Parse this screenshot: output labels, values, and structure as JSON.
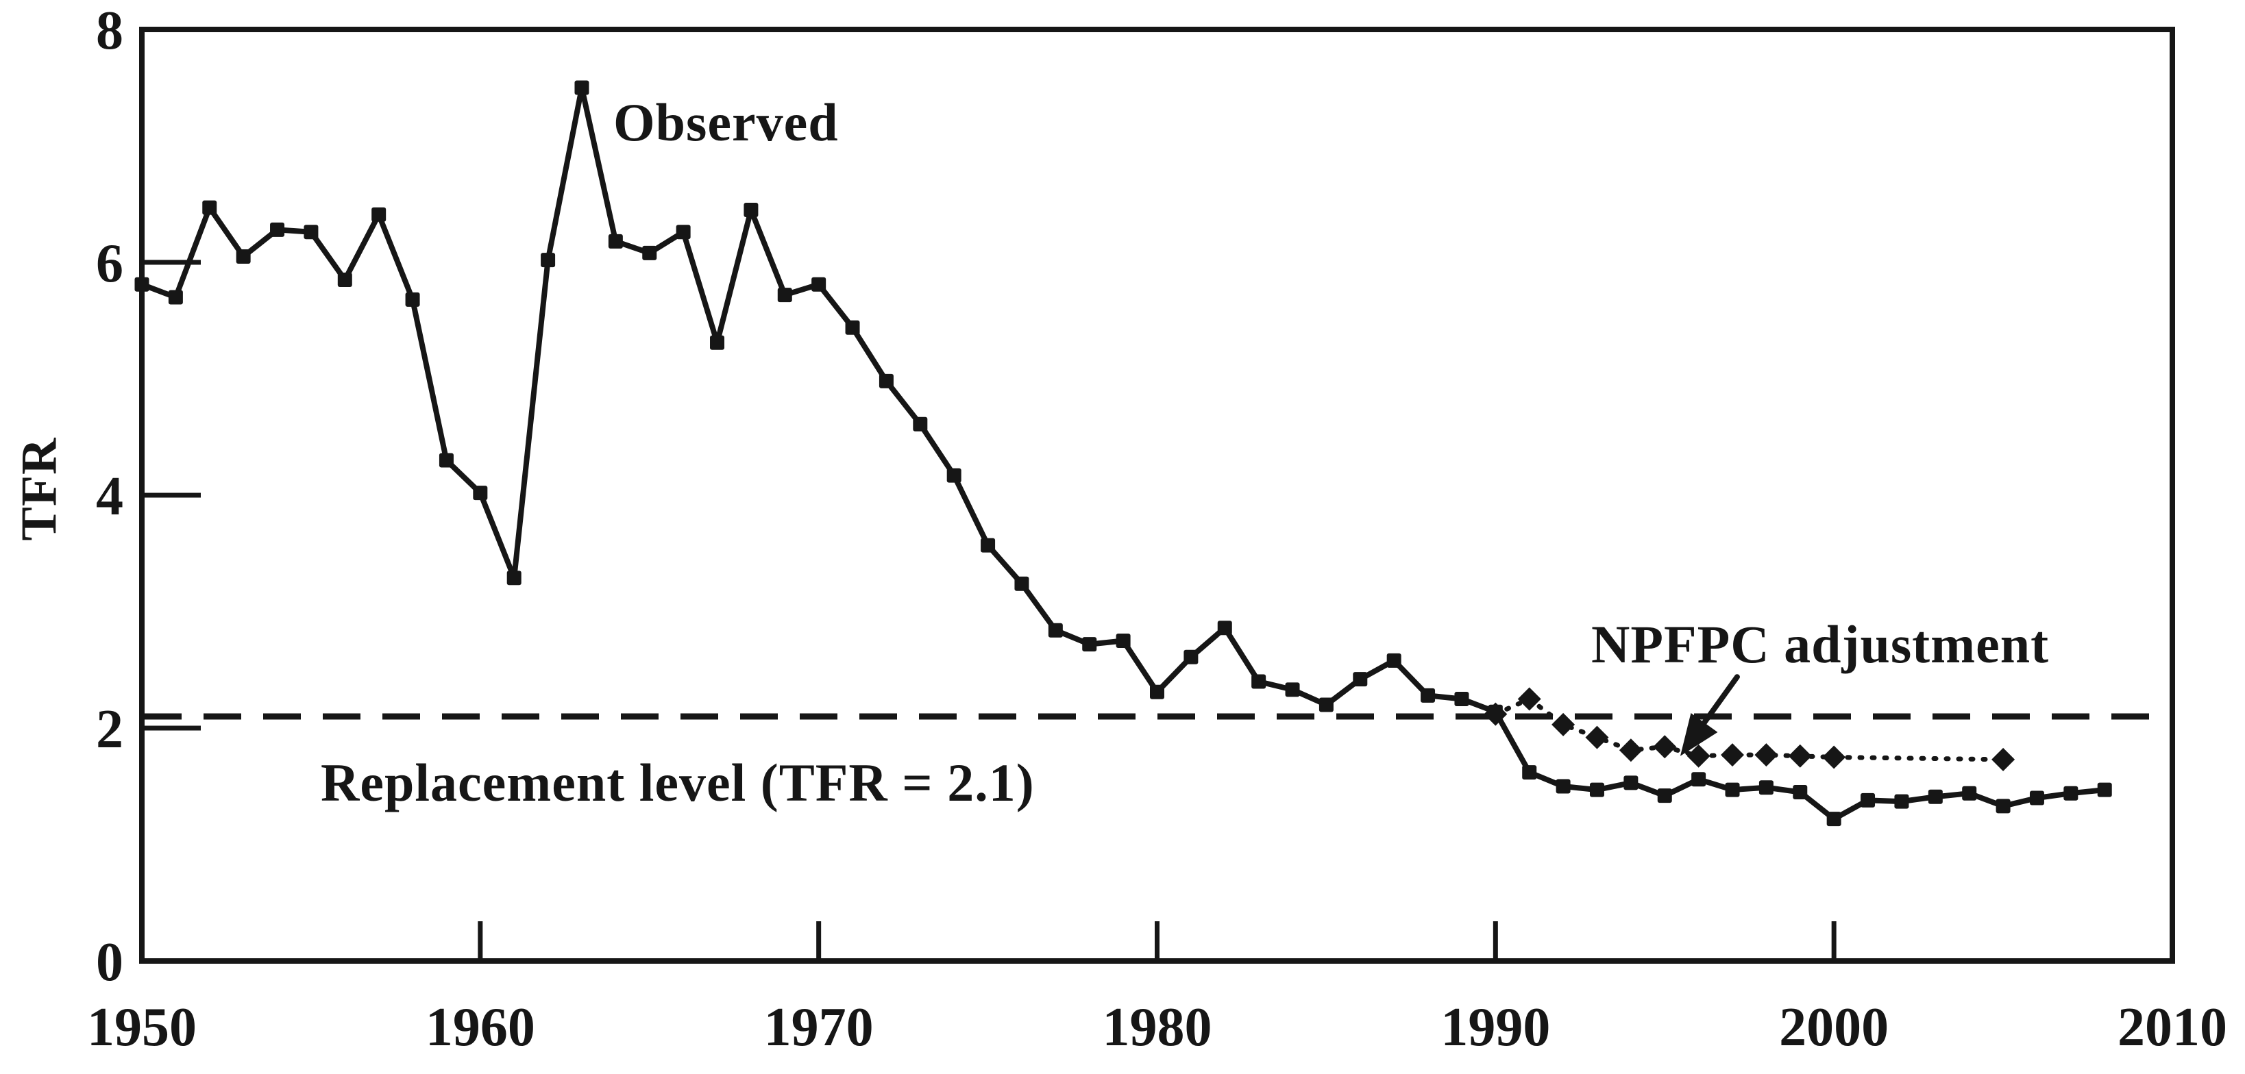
{
  "figure": {
    "background": "#ffffff",
    "ink": "#161616"
  },
  "labels": {
    "observed": "Observed",
    "npfpc": "NPFPC adjustment",
    "replacement": "Replacement level (TFR = 2.1)",
    "y_axis": "TFR"
  },
  "chart_data": {
    "type": "line",
    "title": "",
    "xlabel": "",
    "ylabel": "TFR",
    "xlim": [
      1950,
      2010
    ],
    "ylim": [
      0,
      8
    ],
    "x_ticks": [
      1950,
      1960,
      1970,
      1980,
      1990,
      2000,
      2010
    ],
    "y_ticks": [
      0,
      2,
      4,
      6,
      8
    ],
    "grid": false,
    "legend_position": "none",
    "replacement_level": 2.1,
    "series": [
      {
        "name": "Observed",
        "marker": "square",
        "line": "solid",
        "x": [
          1950,
          1951,
          1952,
          1953,
          1954,
          1955,
          1956,
          1957,
          1958,
          1959,
          1960,
          1961,
          1962,
          1963,
          1964,
          1965,
          1966,
          1967,
          1968,
          1969,
          1970,
          1971,
          1972,
          1973,
          1974,
          1975,
          1976,
          1977,
          1978,
          1979,
          1980,
          1981,
          1982,
          1983,
          1984,
          1985,
          1986,
          1987,
          1988,
          1989,
          1990,
          1991,
          1992,
          1993,
          1994,
          1995,
          1996,
          1997,
          1998,
          1999,
          2000,
          2001,
          2002,
          2003,
          2004,
          2005,
          2006,
          2007,
          2008
        ],
        "values": [
          5.81,
          5.7,
          6.47,
          6.05,
          6.28,
          6.26,
          5.85,
          6.41,
          5.68,
          4.3,
          4.02,
          3.29,
          6.02,
          7.5,
          6.18,
          6.08,
          6.26,
          5.31,
          6.45,
          5.72,
          5.81,
          5.44,
          4.98,
          4.61,
          4.17,
          3.57,
          3.24,
          2.84,
          2.72,
          2.75,
          2.31,
          2.61,
          2.86,
          2.4,
          2.33,
          2.2,
          2.42,
          2.58,
          2.28,
          2.25,
          2.14,
          1.62,
          1.5,
          1.47,
          1.53,
          1.42,
          1.56,
          1.47,
          1.49,
          1.45,
          1.22,
          1.38,
          1.37,
          1.41,
          1.44,
          1.33,
          1.4,
          1.44,
          1.47
        ]
      },
      {
        "name": "NPFPC adjustment",
        "marker": "diamond",
        "line": "dotted",
        "x": [
          1990,
          1991,
          1992,
          1993,
          1994,
          1995,
          1996,
          1997,
          1998,
          1999,
          2000,
          2005
        ],
        "values": [
          2.12,
          2.25,
          2.03,
          1.92,
          1.81,
          1.84,
          1.76,
          1.77,
          1.77,
          1.76,
          1.75,
          1.73
        ]
      }
    ],
    "annotations": [
      {
        "type": "arrow",
        "label": "NPFPC adjustment",
        "from_x": 1997.14,
        "from_y": 2.44,
        "to_x": 1995.46,
        "to_y": 1.76
      }
    ]
  }
}
